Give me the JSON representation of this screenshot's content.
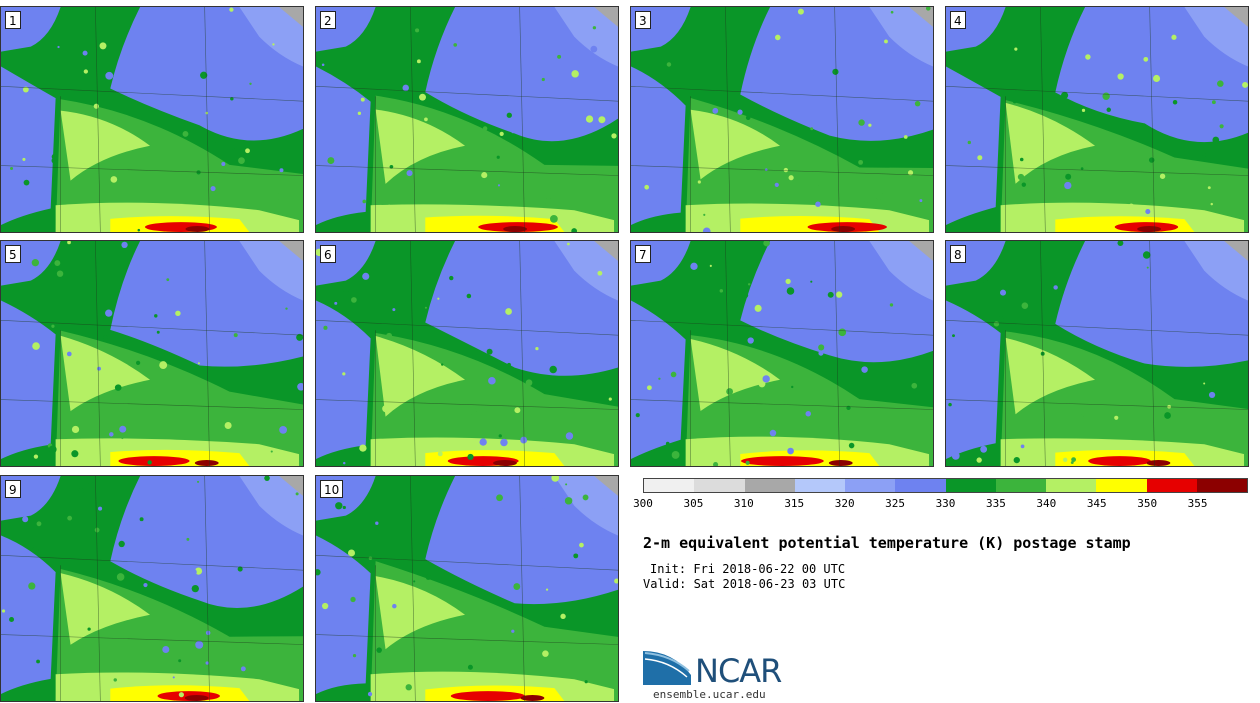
{
  "panels": [
    {
      "label": "1",
      "seed": 11
    },
    {
      "label": "2",
      "seed": 23
    },
    {
      "label": "3",
      "seed": 37
    },
    {
      "label": "4",
      "seed": 41
    },
    {
      "label": "5",
      "seed": 53
    },
    {
      "label": "6",
      "seed": 67
    },
    {
      "label": "7",
      "seed": 71
    },
    {
      "label": "8",
      "seed": 83
    },
    {
      "label": "9",
      "seed": 97
    },
    {
      "label": "10",
      "seed": 101
    }
  ],
  "colorbar": {
    "ticks": [
      "300",
      "305",
      "310",
      "315",
      "320",
      "325",
      "330",
      "335",
      "340",
      "345",
      "350",
      "355"
    ],
    "colors": [
      "#f0f0f0",
      "#dcdcdc",
      "#a8a8a8",
      "#b4c8fa",
      "#8ca0f5",
      "#6e82f0",
      "#0a9628",
      "#3cb43c",
      "#b4f064",
      "#ffff00",
      "#e60000",
      "#8c0000"
    ]
  },
  "title": "2-m equivalent potential temperature (K) postage stamp",
  "init": "Init: Fri 2018-06-22 00 UTC",
  "valid": "Valid: Sat 2018-06-23 03 UTC",
  "logo": {
    "text": "NCAR",
    "site": "ensemble.ucar.edu"
  }
}
